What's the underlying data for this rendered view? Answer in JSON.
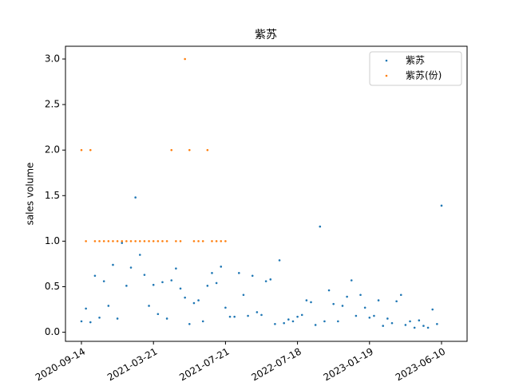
{
  "chart_data": {
    "type": "scatter",
    "title": "紫苏",
    "ylabel": "sales volume",
    "categories": [
      "2020-09-14",
      null,
      null,
      null,
      null,
      null,
      null,
      null,
      null,
      null,
      null,
      null,
      null,
      null,
      null,
      null,
      "2021-03-21",
      null,
      null,
      null,
      null,
      null,
      null,
      null,
      null,
      null,
      null,
      null,
      null,
      null,
      null,
      null,
      "2021-07-21",
      null,
      null,
      null,
      null,
      null,
      null,
      null,
      null,
      null,
      null,
      null,
      null,
      null,
      null,
      null,
      "2022-07-18",
      null,
      null,
      null,
      null,
      null,
      null,
      null,
      null,
      null,
      null,
      null,
      null,
      null,
      null,
      null,
      "2023-01-19",
      null,
      null,
      null,
      null,
      null,
      null,
      null,
      null,
      null,
      null,
      null,
      null,
      null,
      null,
      null,
      "2023-06-10"
    ],
    "series": [
      {
        "name": "紫苏",
        "color": "#1f77b4",
        "values": [
          0.12,
          0.26,
          0.11,
          0.62,
          0.16,
          0.56,
          0.29,
          0.74,
          0.15,
          0.98,
          0.51,
          0.71,
          1.48,
          0.85,
          0.63,
          0.29,
          0.52,
          0.2,
          0.55,
          0.15,
          0.57,
          0.7,
          0.48,
          0.38,
          0.09,
          0.32,
          0.35,
          0.12,
          0.51,
          0.65,
          0.54,
          0.72,
          0.27,
          0.17,
          0.17,
          0.65,
          0.41,
          0.18,
          0.62,
          0.22,
          0.19,
          0.56,
          0.58,
          0.09,
          0.79,
          0.1,
          0.14,
          0.12,
          0.17,
          0.19,
          0.35,
          0.33,
          0.08,
          1.16,
          0.12,
          0.46,
          0.31,
          0.12,
          0.29,
          0.39,
          0.57,
          0.18,
          0.41,
          0.27,
          0.16,
          0.18,
          0.35,
          0.07,
          0.15,
          0.1,
          0.34,
          0.41,
          0.08,
          0.12,
          0.05,
          0.13,
          0.07,
          0.05,
          0.25,
          0.09,
          1.39
        ]
      },
      {
        "name": "紫苏(份)",
        "color": "#ff7f0e",
        "values": [
          2,
          1,
          2,
          1,
          1,
          1,
          1,
          1,
          1,
          1,
          1,
          1,
          1,
          1,
          1,
          1,
          1,
          1,
          1,
          1,
          2,
          1,
          1,
          3,
          2,
          1,
          1,
          1,
          2,
          1,
          1,
          1,
          1,
          null,
          null,
          null,
          null,
          null,
          null,
          null,
          null,
          null,
          null,
          null,
          null,
          null,
          null,
          null,
          null,
          null,
          null,
          null,
          null,
          null,
          null,
          null,
          null,
          null,
          null,
          null,
          null,
          null,
          null,
          null,
          null,
          null,
          null,
          null,
          null,
          null,
          null,
          null,
          null,
          null,
          null,
          null,
          null,
          null,
          null,
          null,
          null
        ]
      }
    ],
    "ylim": [
      -0.1,
      3.14
    ],
    "yticks": [
      {
        "value": 0,
        "label": "0.0"
      },
      {
        "value": 0.5,
        "label": "0.5"
      },
      {
        "value": 1,
        "label": "1.0"
      },
      {
        "value": 1.5,
        "label": "1.5"
      },
      {
        "value": 2,
        "label": "2.0"
      },
      {
        "value": 2.5,
        "label": "2.5"
      },
      {
        "value": 3,
        "label": "3.0"
      }
    ],
    "legend": "upper right"
  }
}
